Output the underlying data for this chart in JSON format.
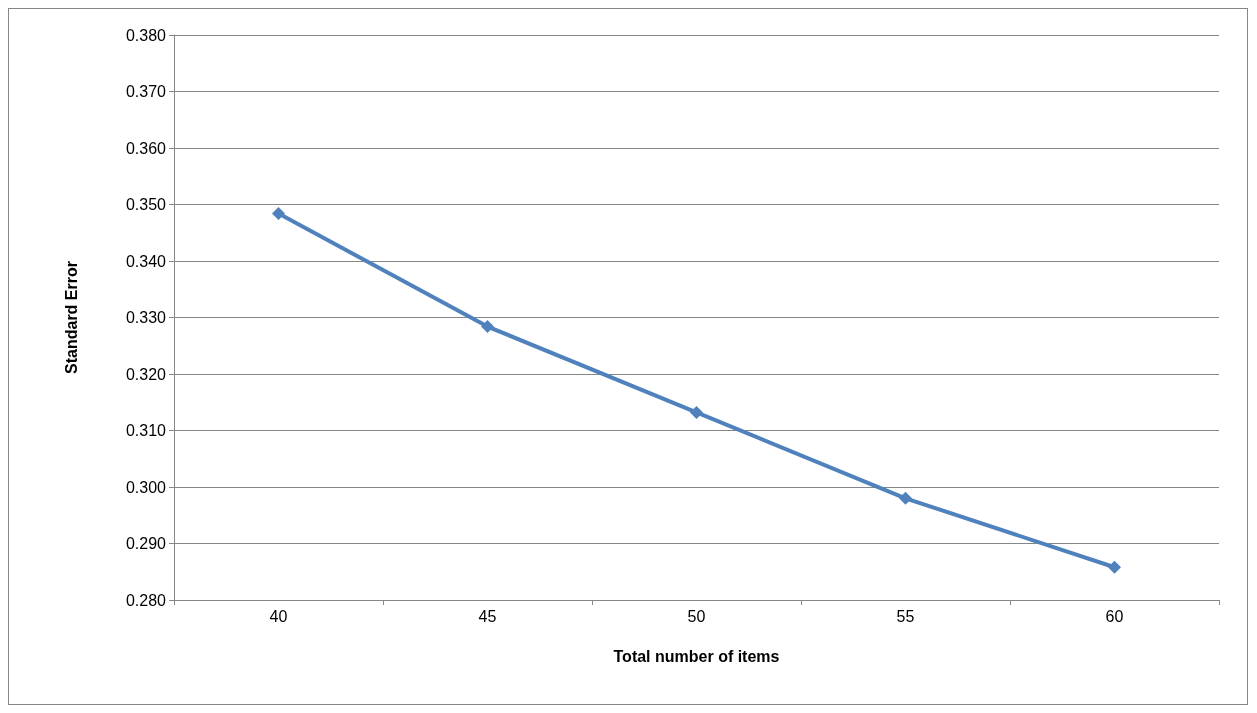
{
  "chart_data": {
    "type": "line",
    "xlabel": "Total number of items",
    "ylabel": "Standard Error",
    "categories": [
      "40",
      "45",
      "50",
      "55",
      "60"
    ],
    "series": [
      {
        "color": "#4f81bd",
        "values": [
          0.3484,
          0.3284,
          0.3132,
          0.298,
          0.2858
        ]
      }
    ],
    "ylim": [
      0.28,
      0.38
    ],
    "yticks": [
      {
        "value": 0.28,
        "label": "0.280"
      },
      {
        "value": 0.29,
        "label": "0.290"
      },
      {
        "value": 0.3,
        "label": "0.300"
      },
      {
        "value": 0.31,
        "label": "0.310"
      },
      {
        "value": 0.32,
        "label": "0.320"
      },
      {
        "value": 0.33,
        "label": "0.330"
      },
      {
        "value": 0.34,
        "label": "0.340"
      },
      {
        "value": 0.35,
        "label": "0.350"
      },
      {
        "value": 0.36,
        "label": "0.360"
      },
      {
        "value": 0.37,
        "label": "0.370"
      },
      {
        "value": 0.38,
        "label": "0.380"
      }
    ],
    "grid": "y",
    "marker": "diamond",
    "line_style": "solid"
  }
}
